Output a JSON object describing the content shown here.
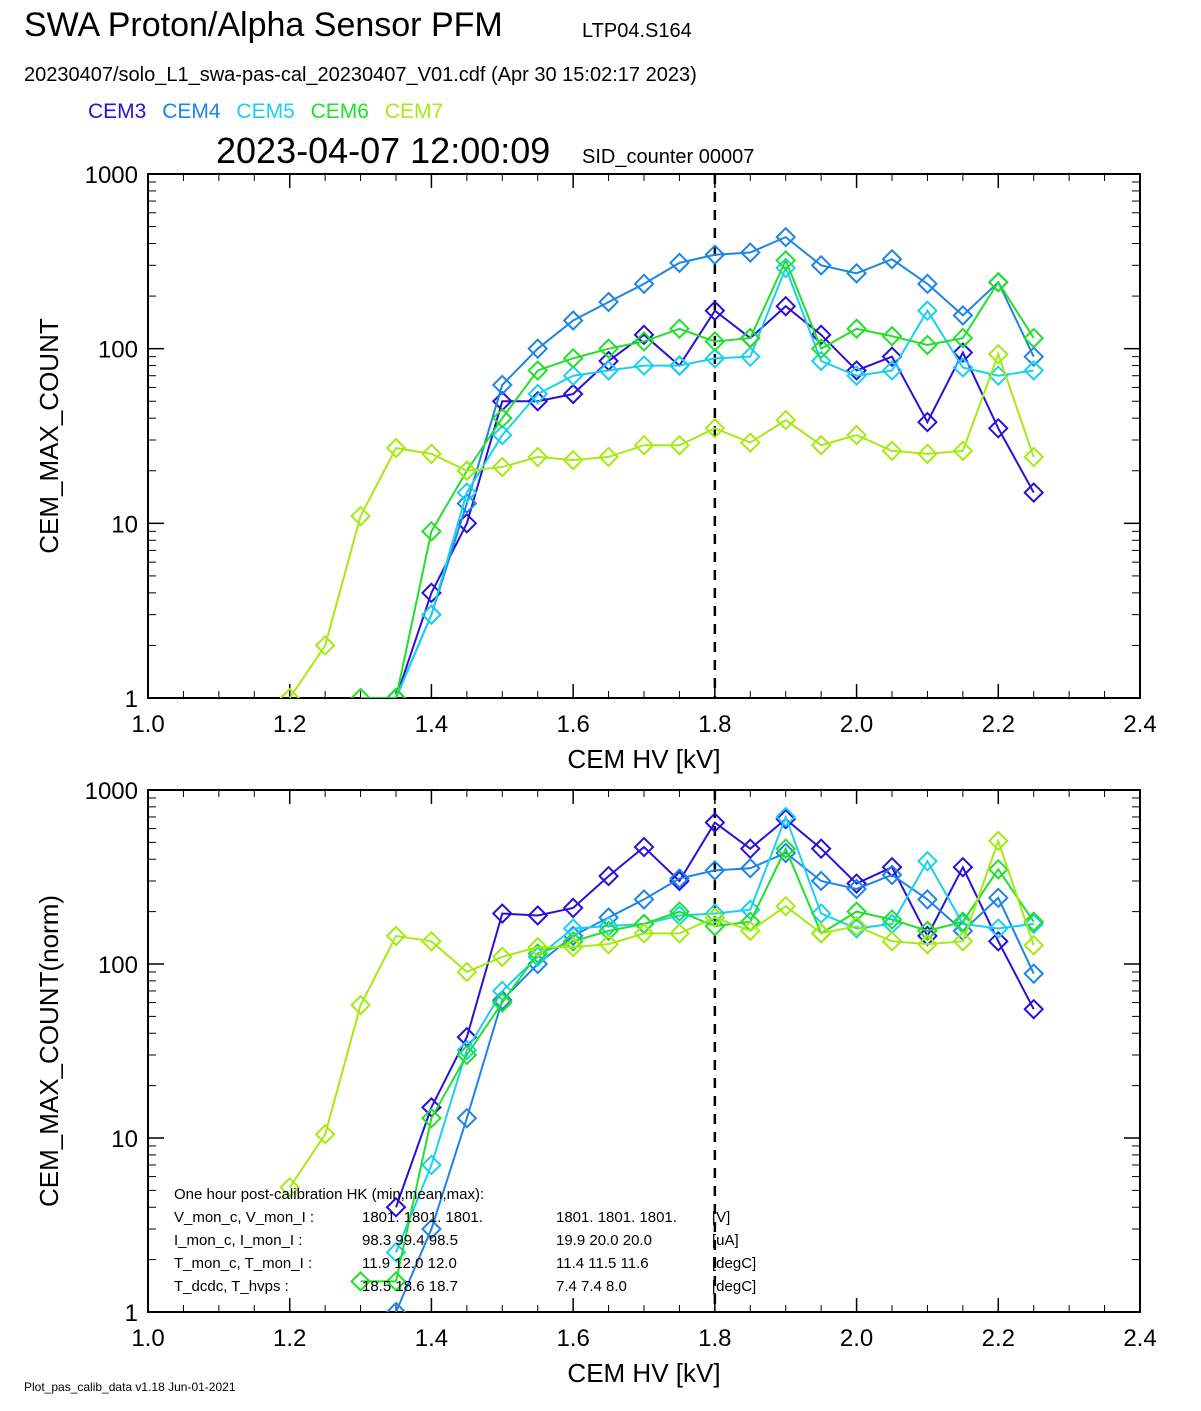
{
  "header": {
    "title": "SWA Proton/Alpha Sensor PFM",
    "run_id": "LTP04.S164",
    "file_line": "20230407/solo_L1_swa-pas-cal_20230407_V01.cdf  (Apr 30 15:02:17 2023)",
    "timestamp": "2023-04-07 12:00:09",
    "sid_counter": "SID_counter 00007"
  },
  "legend": [
    {
      "name": "CEM3",
      "color": "#2a10d8"
    },
    {
      "name": "CEM4",
      "color": "#1e84e6"
    },
    {
      "name": "CEM5",
      "color": "#1ad0ee"
    },
    {
      "name": "CEM6",
      "color": "#22e02a"
    },
    {
      "name": "CEM7",
      "color": "#a6ea14"
    }
  ],
  "footer": "Plot_pas_calib_data v1.18 Jun-01-2021",
  "chart_data": [
    {
      "type": "line",
      "xlabel": "CEM HV [kV]",
      "ylabel": "CEM_MAX_COUNT",
      "xlim": [
        1.0,
        2.4
      ],
      "ylim": [
        1,
        1000
      ],
      "yscale": "log",
      "xticks": [
        "1.0",
        "1.2",
        "1.4",
        "1.6",
        "1.8",
        "2.0",
        "2.2",
        "2.4"
      ],
      "yticks": [
        "1",
        "10",
        "100",
        "1000"
      ],
      "vline": 1.8,
      "x": [
        1.2,
        1.25,
        1.3,
        1.35,
        1.4,
        1.45,
        1.5,
        1.55,
        1.6,
        1.65,
        1.7,
        1.75,
        1.8,
        1.85,
        1.9,
        1.95,
        2.0,
        2.05,
        2.1,
        2.15,
        2.2,
        2.25
      ],
      "series": [
        {
          "name": "CEM3",
          "values": [
            null,
            null,
            null,
            1,
            4,
            10,
            50,
            50,
            55,
            85,
            120,
            80,
            165,
            115,
            175,
            120,
            75,
            90,
            38,
            95,
            35,
            15
          ]
        },
        {
          "name": "CEM4",
          "values": [
            null,
            null,
            null,
            1,
            3,
            13,
            62,
            100,
            145,
            185,
            235,
            310,
            345,
            355,
            435,
            300,
            270,
            325,
            235,
            155,
            240,
            90
          ]
        },
        {
          "name": "CEM5",
          "values": [
            null,
            null,
            null,
            1,
            3,
            15,
            32,
            55,
            70,
            75,
            80,
            80,
            88,
            90,
            290,
            85,
            70,
            75,
            165,
            78,
            70,
            75
          ]
        },
        {
          "name": "CEM6",
          "values": [
            null,
            null,
            1,
            1,
            9,
            20,
            40,
            75,
            88,
            100,
            110,
            130,
            110,
            115,
            320,
            100,
            130,
            118,
            105,
            115,
            240,
            115
          ]
        },
        {
          "name": "CEM7",
          "values": [
            1,
            2,
            11,
            27,
            25,
            20,
            21,
            24,
            23,
            24,
            28,
            28,
            35,
            29,
            39,
            28,
            32,
            26,
            25,
            26,
            93,
            24
          ]
        }
      ]
    },
    {
      "type": "line",
      "xlabel": "CEM HV [kV]",
      "ylabel": "CEM_MAX_COUNT(norm)",
      "xlim": [
        1.0,
        2.4
      ],
      "ylim": [
        1,
        1000
      ],
      "yscale": "log",
      "xticks": [
        "1.0",
        "1.2",
        "1.4",
        "1.6",
        "1.8",
        "2.0",
        "2.2",
        "2.4"
      ],
      "yticks": [
        "1",
        "10",
        "100",
        "1000"
      ],
      "vline": 1.8,
      "x": [
        1.2,
        1.25,
        1.3,
        1.35,
        1.4,
        1.45,
        1.5,
        1.55,
        1.6,
        1.65,
        1.7,
        1.75,
        1.8,
        1.85,
        1.9,
        1.95,
        2.0,
        2.05,
        2.1,
        2.15,
        2.2,
        2.25
      ],
      "series": [
        {
          "name": "CEM3",
          "values": [
            null,
            null,
            null,
            4,
            15,
            38,
            195,
            190,
            210,
            320,
            470,
            300,
            650,
            460,
            680,
            460,
            290,
            360,
            145,
            360,
            135,
            55
          ]
        },
        {
          "name": "CEM4",
          "values": [
            null,
            null,
            null,
            1,
            3,
            13,
            62,
            100,
            145,
            185,
            235,
            310,
            345,
            355,
            435,
            300,
            270,
            325,
            235,
            155,
            240,
            88
          ]
        },
        {
          "name": "CEM5",
          "values": [
            null,
            null,
            null,
            2.2,
            7,
            32,
            70,
            110,
            160,
            165,
            170,
            190,
            195,
            205,
            700,
            195,
            160,
            170,
            390,
            170,
            160,
            170
          ]
        },
        {
          "name": "CEM6",
          "values": [
            null,
            null,
            1.5,
            1.5,
            13,
            30,
            60,
            115,
            135,
            155,
            170,
            200,
            165,
            175,
            460,
            150,
            200,
            180,
            155,
            175,
            350,
            175
          ]
        },
        {
          "name": "CEM7",
          "values": [
            5.2,
            10.5,
            58,
            145,
            135,
            90,
            110,
            125,
            125,
            130,
            150,
            150,
            185,
            155,
            215,
            150,
            165,
            135,
            130,
            135,
            510,
            128
          ]
        }
      ]
    }
  ],
  "hk_block": {
    "title": "One hour post-calibration HK (min,mean,max):",
    "rows": [
      {
        "label": "V_mon_c, V_mon_I :",
        "values_c": "1801.   1801.   1801.",
        "values_i": "1801.   1801.   1801.",
        "unit": "[V]"
      },
      {
        "label": "I_mon_c,  I_mon_I :",
        "values_c": "98.3   99.4   98.5",
        "values_i": "19.9   20.0   20.0",
        "unit": "[uA]"
      },
      {
        "label": "T_mon_c, T_mon_I :",
        "values_c": "11.9   12.0   12.0",
        "values_i": "11.4   11.5   11.6",
        "unit": "[degC]"
      },
      {
        "label": "T_dcdc,    T_hvps :",
        "values_c": "18.5   18.6   18.7",
        "values_i": "7.4     7.4     8.0",
        "unit": "[degC]"
      }
    ]
  }
}
